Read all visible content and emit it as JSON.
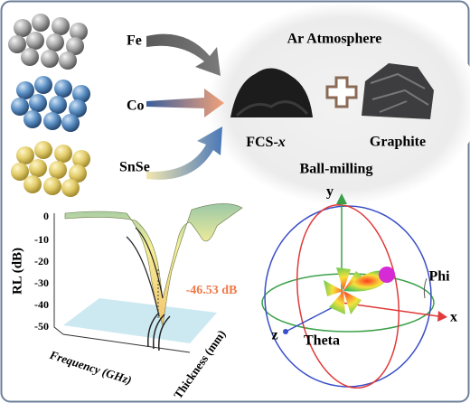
{
  "materials": [
    {
      "label": "Fe"
    },
    {
      "label": "Co"
    },
    {
      "label": "SnSe"
    }
  ],
  "process": {
    "atmosphere": "Ar Atmosphere",
    "product": "FCS-",
    "product_variable": "x",
    "additive": "Graphite",
    "method": "Ball-milling"
  },
  "rl_plot": {
    "axis_label": "RL (dB)",
    "ticks": [
      "0",
      "-10",
      "-20",
      "-30",
      "-40",
      "-50"
    ],
    "peak_label": "-46.53 dB",
    "frequency_label": "Frequency (GHz)",
    "thickness_label": "Thickness (mm)"
  },
  "radiation_pattern": {
    "axes": [
      "y",
      "x",
      "z"
    ],
    "angles": [
      "Phi",
      "Theta"
    ]
  }
}
